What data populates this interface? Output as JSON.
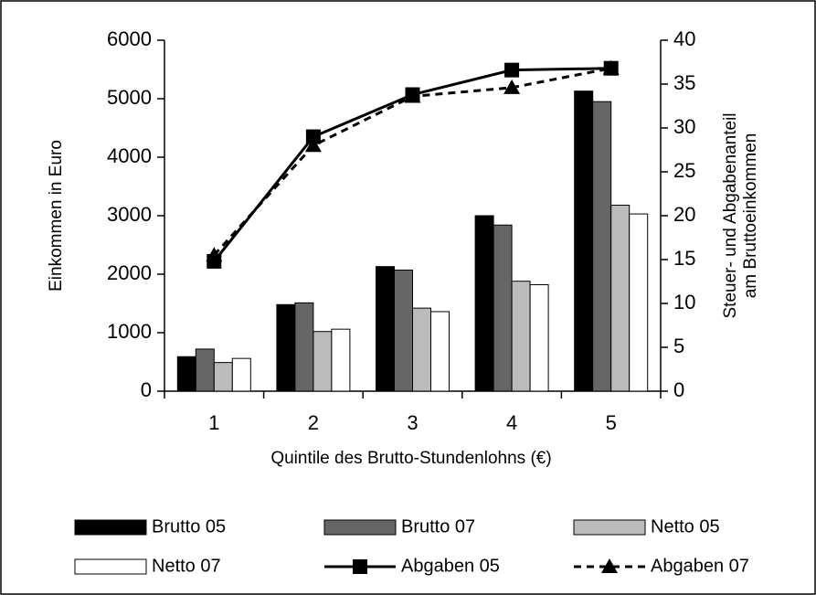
{
  "chart_data": {
    "type": "bar",
    "xlabel": "Quintile des Brutto-Stundenlohns (€)",
    "ylabel": "Einkommen in Euro",
    "y2label": [
      "Steuer- und Abgabenanteil",
      "am Bruttoeinkommen"
    ],
    "categories": [
      "1",
      "2",
      "3",
      "4",
      "5"
    ],
    "ylim": [
      0,
      6000
    ],
    "yticks": [
      0,
      1000,
      2000,
      3000,
      4000,
      5000,
      6000
    ],
    "y2lim": [
      0,
      40
    ],
    "y2ticks": [
      0,
      5,
      10,
      15,
      20,
      25,
      30,
      35,
      40
    ],
    "series": [
      {
        "name": "Brutto 05",
        "type": "bar",
        "color": "#000000",
        "values": [
          590,
          1480,
          2130,
          3000,
          5130
        ]
      },
      {
        "name": "Brutto 07",
        "type": "bar",
        "color": "#666666",
        "values": [
          720,
          1510,
          2070,
          2840,
          4950
        ]
      },
      {
        "name": "Netto 05",
        "type": "bar",
        "color": "#bbbbbb",
        "values": [
          490,
          1020,
          1420,
          1880,
          3180
        ]
      },
      {
        "name": "Netto 07",
        "type": "bar",
        "color": "#ffffff",
        "values": [
          560,
          1060,
          1360,
          1820,
          3030
        ]
      },
      {
        "name": "Abgaben 05",
        "type": "line",
        "axis": "y2",
        "color": "#000000",
        "marker": "square",
        "dashed": false,
        "values": [
          14.8,
          29,
          33.8,
          36.6,
          36.8
        ]
      },
      {
        "name": "Abgaben 07",
        "type": "line",
        "axis": "y2",
        "color": "#000000",
        "marker": "triangle",
        "dashed": true,
        "values": [
          15.5,
          28,
          33.6,
          34.6,
          36.8
        ]
      }
    ]
  }
}
